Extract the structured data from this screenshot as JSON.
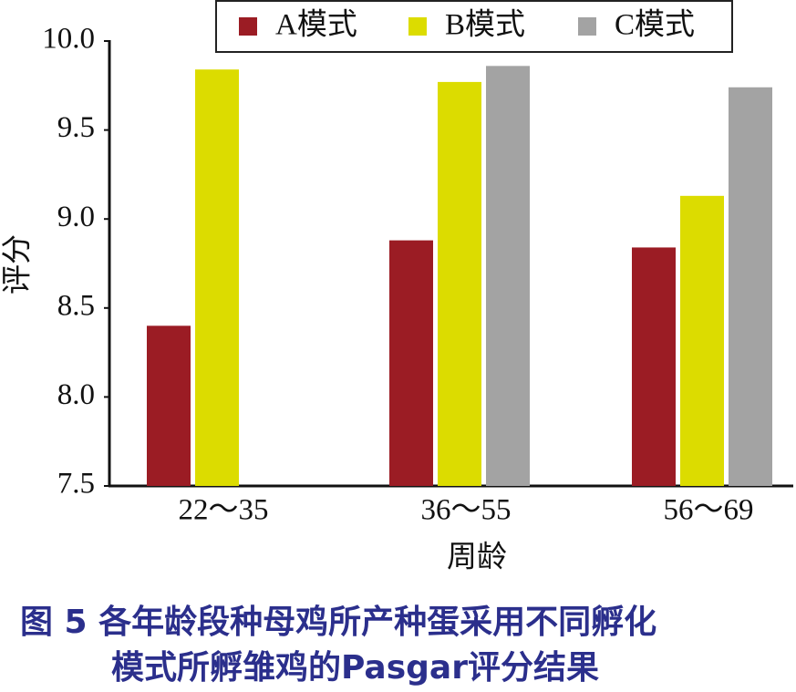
{
  "chart_data": {
    "type": "bar",
    "ylabel": "评分",
    "xlabel": "周龄",
    "caption": [
      "图 5  各年龄段种母鸡所产种蛋采用不同孵化",
      "模式所孵雏鸡的Pasgar评分结果"
    ],
    "categories": [
      "22～35",
      "36～55",
      "56～69"
    ],
    "series": [
      {
        "name": "A模式",
        "color": "#9b1c24",
        "values": [
          8.4,
          8.88,
          8.84
        ]
      },
      {
        "name": "B模式",
        "color": "#dcdc00",
        "values": [
          9.84,
          9.77,
          9.13
        ]
      },
      {
        "name": "C模式",
        "color": "#a3a3a3",
        "values": [
          null,
          9.86,
          9.74
        ]
      }
    ],
    "ylim": [
      7.5,
      10.0
    ],
    "yticks": [
      7.5,
      {
        "value": 8,
        "label": "8.0"
      },
      8.5,
      {
        "value": 9,
        "label": "9.0"
      },
      9.5,
      {
        "value": 10,
        "label": "10.0"
      }
    ],
    "legend": "top"
  }
}
